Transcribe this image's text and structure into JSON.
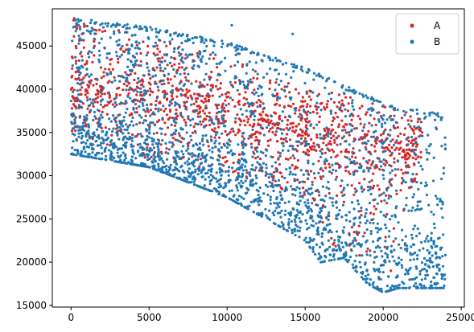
{
  "chart_data": {
    "type": "scatter",
    "title": "",
    "xlabel": "",
    "ylabel": "",
    "xlim": [
      -1200,
      25200
    ],
    "ylim": [
      14800,
      49300
    ],
    "x_ticks": [
      0,
      5000,
      10000,
      15000,
      20000,
      25000
    ],
    "y_ticks": [
      15000,
      20000,
      25000,
      30000,
      35000,
      40000,
      45000
    ],
    "grid": false,
    "legend_position": "top-right",
    "series": [
      {
        "name": "A",
        "color": "#d62728",
        "approx_points": 1300,
        "region": {
          "x_range": [
            0,
            22500
          ],
          "y_min_at_x": [
            [
              0,
              34000
            ],
            [
              5000,
              32000
            ],
            [
              10000,
              30500
            ],
            [
              15000,
              27500
            ],
            [
              17000,
              21000
            ],
            [
              20000,
              19000
            ],
            [
              22500,
              31500
            ]
          ],
          "y_max_at_x": [
            [
              0,
              48500
            ],
            [
              5000,
              46000
            ],
            [
              10000,
              43500
            ],
            [
              15000,
              40500
            ],
            [
              20000,
              38000
            ],
            [
              22500,
              37000
            ]
          ],
          "dense_band_at_x": [
            [
              0,
              40500
            ],
            [
              10000,
              37500
            ],
            [
              20000,
              33000
            ]
          ]
        },
        "sample_points": [
          [
            200,
            48200
          ],
          [
            500,
            42000
          ],
          [
            1500,
            45000
          ],
          [
            3000,
            43500
          ],
          [
            4500,
            41000
          ],
          [
            6000,
            44000
          ],
          [
            7500,
            39000
          ],
          [
            9000,
            42000
          ],
          [
            10500,
            38000
          ],
          [
            12000,
            36000
          ],
          [
            13500,
            40000
          ],
          [
            15000,
            36500
          ],
          [
            16500,
            33000
          ],
          [
            18000,
            31500
          ],
          [
            19500,
            34000
          ],
          [
            20500,
            19000
          ],
          [
            21500,
            31000
          ],
          [
            22500,
            35000
          ]
        ]
      },
      {
        "name": "B",
        "color": "#1f77b4",
        "approx_points": 2400,
        "region": {
          "x_range": [
            0,
            24000
          ],
          "y_min_at_x": [
            [
              0,
              32500
            ],
            [
              5000,
              31000
            ],
            [
              10000,
              27500
            ],
            [
              13000,
              24500
            ],
            [
              15000,
              22500
            ],
            [
              16000,
              20000
            ],
            [
              17500,
              20500
            ],
            [
              19000,
              17500
            ],
            [
              20000,
              16500
            ],
            [
              21000,
              17000
            ]
          ],
          "y_max_at_x": [
            [
              0,
              48300
            ],
            [
              5000,
              47200
            ],
            [
              10000,
              45500
            ],
            [
              15000,
              42500
            ],
            [
              20000,
              38500
            ],
            [
              22500,
              37300
            ],
            [
              24000,
              37000
            ]
          ],
          "upper_edge_line": [
            [
              0,
              48300
            ],
            [
              5000,
              47200
            ],
            [
              10000,
              45500
            ],
            [
              15000,
              42500
            ],
            [
              20000,
              38500
            ],
            [
              24000,
              37000
            ]
          ],
          "dense_band_at_x": [
            [
              0,
              34500
            ],
            [
              5000,
              32000
            ],
            [
              10000,
              29500
            ],
            [
              15000,
              25000
            ],
            [
              20000,
              18500
            ]
          ]
        },
        "sample_points": [
          [
            300,
            48000
          ],
          [
            2000,
            47600
          ],
          [
            4500,
            47000
          ],
          [
            7500,
            45800
          ],
          [
            10300,
            47400
          ],
          [
            14200,
            46400
          ],
          [
            12000,
            44000
          ],
          [
            16000,
            41500
          ],
          [
            18500,
            39500
          ],
          [
            23500,
            37200
          ],
          [
            500,
            34500
          ],
          [
            3000,
            33000
          ],
          [
            6000,
            31000
          ],
          [
            9000,
            29500
          ],
          [
            12000,
            27000
          ],
          [
            14500,
            26000
          ],
          [
            16500,
            22500
          ],
          [
            18500,
            20000
          ],
          [
            20500,
            16800
          ],
          [
            22000,
            33000
          ]
        ]
      }
    ]
  }
}
